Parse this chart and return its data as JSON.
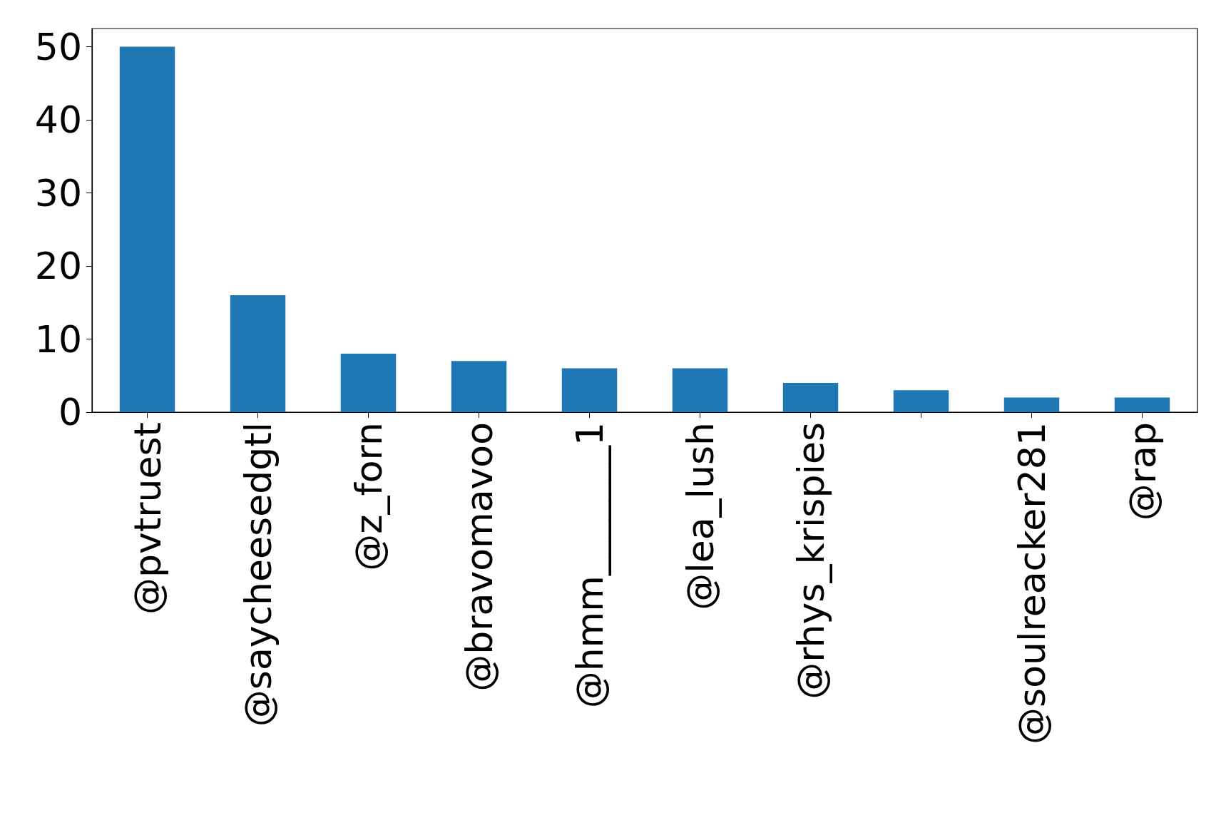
{
  "chart_data": {
    "type": "bar",
    "categories": [
      "@pvtruest",
      "@saycheesedgtl",
      "@z_forn",
      "@bravomavoo",
      "@hmm_______1",
      "@lea_lush",
      "@rhys_krispies",
      null,
      "@soulreacker281",
      "@rap"
    ],
    "values": [
      50,
      16,
      8,
      7,
      6,
      6,
      4,
      3,
      2,
      2
    ],
    "color": "#1f77b4",
    "ylim": [
      0,
      52.5
    ],
    "yticks": [
      0,
      10,
      20,
      30,
      40,
      50
    ],
    "grid": false
  }
}
